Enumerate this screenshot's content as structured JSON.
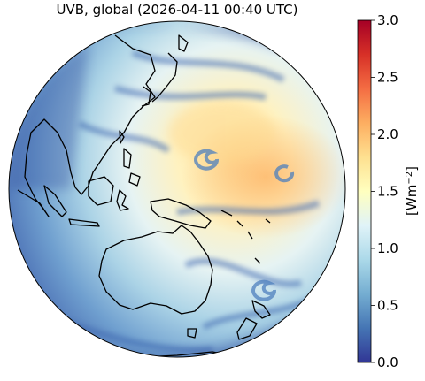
{
  "title": "UVB, global (2026-04-11 00:40 UTC)",
  "colorbar": {
    "ticks": [
      "0.0",
      "0.5",
      "1.0",
      "1.5",
      "2.0",
      "2.5",
      "3.0"
    ],
    "min": 0.0,
    "max": 3.0,
    "units_base": "[Wm",
    "units_exp": "−2",
    "units_close": "]",
    "colormap": [
      "#313695",
      "#4575b4",
      "#74add1",
      "#abd9e9",
      "#e0f3f8",
      "#ffffbf",
      "#fee090",
      "#fdae61",
      "#f46d43",
      "#d73027",
      "#a50026"
    ]
  },
  "map": {
    "projection": "orthographic",
    "land_outlines": [
      "Asia",
      "Japan",
      "Philippines",
      "Indonesia",
      "New Guinea",
      "Australia",
      "New Zealand",
      "Antarctica coast"
    ]
  }
}
